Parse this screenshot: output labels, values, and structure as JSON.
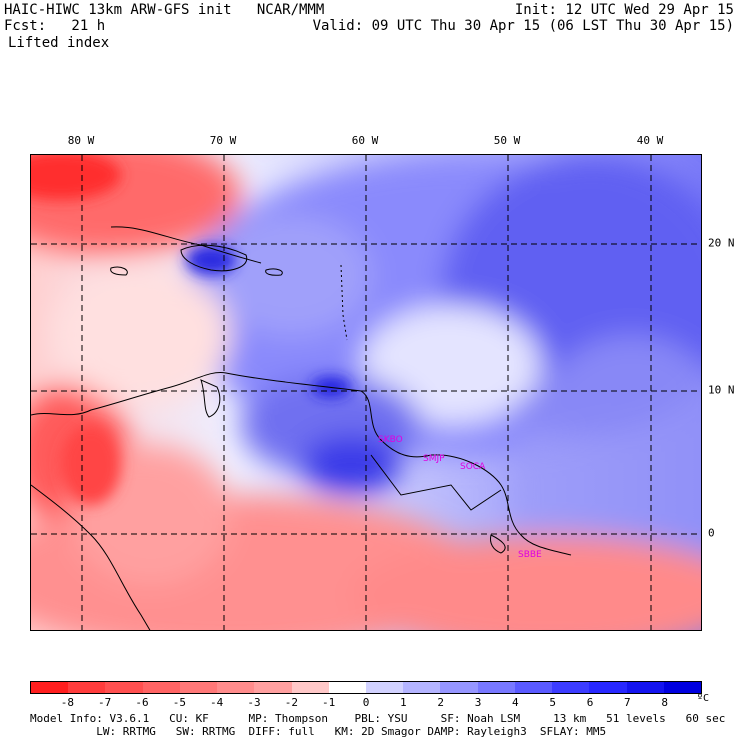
{
  "header": {
    "title": "HAIC-HIWC 13km ARW-GFS init   NCAR/MMM",
    "fcst": "Fcst:   21 h",
    "field": "Lifted index",
    "init": "Init: 12 UTC Wed 29 Apr 15",
    "valid": "Valid: 09 UTC Thu 30 Apr 15 (06 LST Thu 30 Apr 15)"
  },
  "map": {
    "lon_labels": [
      "80 W",
      "70 W",
      "60 W",
      "50 W",
      "40 W"
    ],
    "lat_labels": [
      "20 N",
      "10 N",
      "0"
    ],
    "station_labels": [
      "SKBO",
      "SMJP",
      "SOCA",
      "SBBE"
    ],
    "station_color": "#e000e0"
  },
  "colorbar": {
    "labels": [
      "-8",
      "-7",
      "-6",
      "-5",
      "-4",
      "-3",
      "-2",
      "-1",
      "0",
      "1",
      "2",
      "3",
      "4",
      "5",
      "6",
      "7",
      "8"
    ],
    "unit": "ºC",
    "colors": [
      "#ff1e1e",
      "#ff3c3c",
      "#ff5050",
      "#ff6464",
      "#ff7878",
      "#ff8c8c",
      "#ffa0a0",
      "#ffc8c8",
      "#ffffff",
      "#d2d2ff",
      "#b4b4ff",
      "#9696ff",
      "#7878ff",
      "#5a5aff",
      "#3c3cff",
      "#2828ff",
      "#1414f0",
      "#0000e0"
    ]
  },
  "info": {
    "line1": "Model Info: V3.6.1   CU: KF      MP: Thompson    PBL: YSU     SF: Noah LSM     13 km   51 levels   60 sec",
    "line2": "          LW: RRTMG   SW: RRTMG  DIFF: full   KM: 2D Smagor DAMP: Rayleigh3  SFLAY: MM5"
  }
}
